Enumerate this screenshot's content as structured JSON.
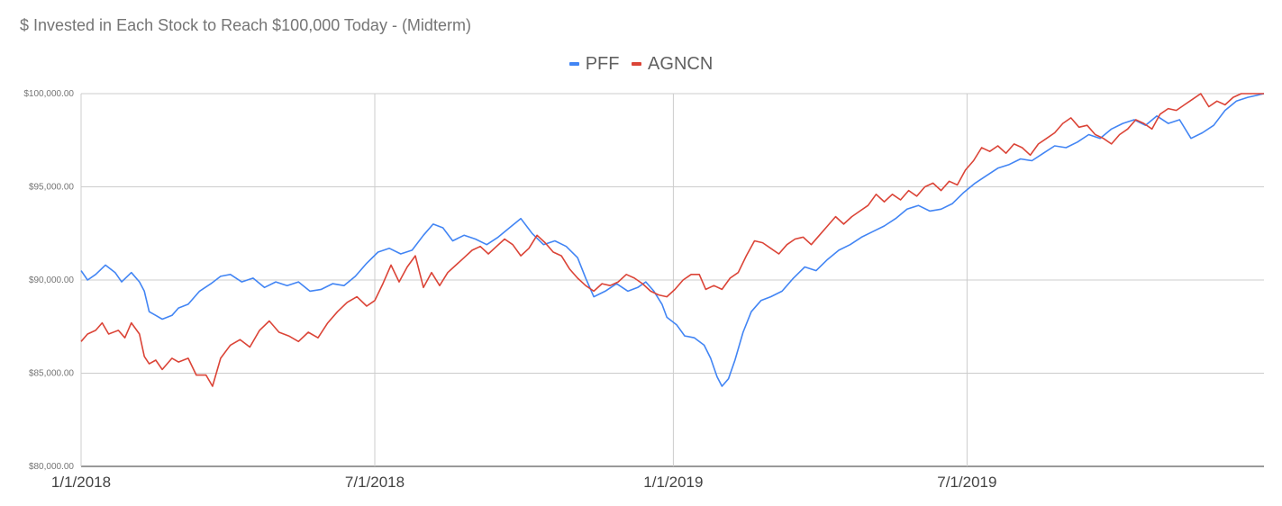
{
  "chart_data": {
    "type": "line",
    "title": "$ Invested in Each Stock to Reach $100,000 Today - (Midterm)",
    "xlabel": "",
    "ylabel": "",
    "ylim": [
      80000,
      100000
    ],
    "xlim": [
      "2018-01-01",
      "2019-12-31"
    ],
    "y_ticks": [
      {
        "value": 100000,
        "label": "$100,000.00"
      },
      {
        "value": 95000,
        "label": "$95,000.00"
      },
      {
        "value": 90000,
        "label": "$90,000.00"
      },
      {
        "value": 85000,
        "label": "$85,000.00"
      },
      {
        "value": 80000,
        "label": "$80,000.00"
      }
    ],
    "x_ticks": [
      {
        "value": "2018-01-01",
        "label": "1/1/2018"
      },
      {
        "value": "2018-07-01",
        "label": "7/1/2018"
      },
      {
        "value": "2019-01-01",
        "label": "1/1/2019"
      },
      {
        "value": "2019-07-01",
        "label": "7/1/2019"
      }
    ],
    "grid": true,
    "legend_position": "top",
    "series": [
      {
        "name": "PFF",
        "color": "#4285f4",
        "points": [
          [
            "2018-01-01",
            90500
          ],
          [
            "2018-01-05",
            90000
          ],
          [
            "2018-01-10",
            90300
          ],
          [
            "2018-01-16",
            90800
          ],
          [
            "2018-01-22",
            90400
          ],
          [
            "2018-01-26",
            89900
          ],
          [
            "2018-02-01",
            90400
          ],
          [
            "2018-02-06",
            89900
          ],
          [
            "2018-02-09",
            89400
          ],
          [
            "2018-02-12",
            88300
          ],
          [
            "2018-02-16",
            88100
          ],
          [
            "2018-02-20",
            87900
          ],
          [
            "2018-02-26",
            88100
          ],
          [
            "2018-03-02",
            88500
          ],
          [
            "2018-03-08",
            88700
          ],
          [
            "2018-03-15",
            89400
          ],
          [
            "2018-03-22",
            89800
          ],
          [
            "2018-03-28",
            90200
          ],
          [
            "2018-04-03",
            90300
          ],
          [
            "2018-04-10",
            89900
          ],
          [
            "2018-04-17",
            90100
          ],
          [
            "2018-04-24",
            89600
          ],
          [
            "2018-05-01",
            89900
          ],
          [
            "2018-05-08",
            89700
          ],
          [
            "2018-05-15",
            89900
          ],
          [
            "2018-05-22",
            89400
          ],
          [
            "2018-05-29",
            89500
          ],
          [
            "2018-06-05",
            89800
          ],
          [
            "2018-06-12",
            89700
          ],
          [
            "2018-06-19",
            90200
          ],
          [
            "2018-06-26",
            90900
          ],
          [
            "2018-07-03",
            91500
          ],
          [
            "2018-07-10",
            91700
          ],
          [
            "2018-07-17",
            91400
          ],
          [
            "2018-07-24",
            91600
          ],
          [
            "2018-07-31",
            92400
          ],
          [
            "2018-08-06",
            93000
          ],
          [
            "2018-08-12",
            92800
          ],
          [
            "2018-08-18",
            92100
          ],
          [
            "2018-08-25",
            92400
          ],
          [
            "2018-09-01",
            92200
          ],
          [
            "2018-09-08",
            91900
          ],
          [
            "2018-09-15",
            92300
          ],
          [
            "2018-09-22",
            92800
          ],
          [
            "2018-09-29",
            93300
          ],
          [
            "2018-10-06",
            92500
          ],
          [
            "2018-10-13",
            91900
          ],
          [
            "2018-10-20",
            92100
          ],
          [
            "2018-10-27",
            91800
          ],
          [
            "2018-11-03",
            91200
          ],
          [
            "2018-11-08",
            90100
          ],
          [
            "2018-11-13",
            89100
          ],
          [
            "2018-11-20",
            89400
          ],
          [
            "2018-11-27",
            89800
          ],
          [
            "2018-12-04",
            89400
          ],
          [
            "2018-12-10",
            89600
          ],
          [
            "2018-12-15",
            89900
          ],
          [
            "2018-12-20",
            89400
          ],
          [
            "2018-12-25",
            88700
          ],
          [
            "2018-12-28",
            88000
          ],
          [
            "2019-01-03",
            87600
          ],
          [
            "2019-01-08",
            87000
          ],
          [
            "2019-01-14",
            86900
          ],
          [
            "2019-01-20",
            86500
          ],
          [
            "2019-01-24",
            85800
          ],
          [
            "2019-01-28",
            84800
          ],
          [
            "2019-01-31",
            84300
          ],
          [
            "2019-02-04",
            84700
          ],
          [
            "2019-02-08",
            85700
          ],
          [
            "2019-02-13",
            87200
          ],
          [
            "2019-02-18",
            88300
          ],
          [
            "2019-02-24",
            88900
          ],
          [
            "2019-03-02",
            89100
          ],
          [
            "2019-03-09",
            89400
          ],
          [
            "2019-03-16",
            90100
          ],
          [
            "2019-03-23",
            90700
          ],
          [
            "2019-03-30",
            90500
          ],
          [
            "2019-04-06",
            91100
          ],
          [
            "2019-04-13",
            91600
          ],
          [
            "2019-04-20",
            91900
          ],
          [
            "2019-04-27",
            92300
          ],
          [
            "2019-05-04",
            92600
          ],
          [
            "2019-05-11",
            92900
          ],
          [
            "2019-05-18",
            93300
          ],
          [
            "2019-05-25",
            93800
          ],
          [
            "2019-06-01",
            94000
          ],
          [
            "2019-06-08",
            93700
          ],
          [
            "2019-06-15",
            93800
          ],
          [
            "2019-06-22",
            94100
          ],
          [
            "2019-06-29",
            94700
          ],
          [
            "2019-07-06",
            95200
          ],
          [
            "2019-07-13",
            95600
          ],
          [
            "2019-07-20",
            96000
          ],
          [
            "2019-07-27",
            96200
          ],
          [
            "2019-08-03",
            96500
          ],
          [
            "2019-08-10",
            96400
          ],
          [
            "2019-08-17",
            96800
          ],
          [
            "2019-08-24",
            97200
          ],
          [
            "2019-08-31",
            97100
          ],
          [
            "2019-09-07",
            97400
          ],
          [
            "2019-09-14",
            97800
          ],
          [
            "2019-09-21",
            97600
          ],
          [
            "2019-09-28",
            98100
          ],
          [
            "2019-10-05",
            98400
          ],
          [
            "2019-10-12",
            98600
          ],
          [
            "2019-10-19",
            98300
          ],
          [
            "2019-10-26",
            98800
          ],
          [
            "2019-11-02",
            98400
          ],
          [
            "2019-11-09",
            98600
          ],
          [
            "2019-11-16",
            97600
          ],
          [
            "2019-11-23",
            97900
          ],
          [
            "2019-11-30",
            98300
          ],
          [
            "2019-12-07",
            99100
          ],
          [
            "2019-12-14",
            99600
          ],
          [
            "2019-12-21",
            99800
          ],
          [
            "2019-12-31",
            100000
          ]
        ]
      },
      {
        "name": "AGNCN",
        "color": "#db4437",
        "points": [
          [
            "2018-01-01",
            86700
          ],
          [
            "2018-01-05",
            87100
          ],
          [
            "2018-01-10",
            87300
          ],
          [
            "2018-01-14",
            87700
          ],
          [
            "2018-01-18",
            87100
          ],
          [
            "2018-01-24",
            87300
          ],
          [
            "2018-01-28",
            86900
          ],
          [
            "2018-02-01",
            87700
          ],
          [
            "2018-02-06",
            87100
          ],
          [
            "2018-02-09",
            85900
          ],
          [
            "2018-02-12",
            85500
          ],
          [
            "2018-02-16",
            85700
          ],
          [
            "2018-02-20",
            85200
          ],
          [
            "2018-02-26",
            85800
          ],
          [
            "2018-03-02",
            85600
          ],
          [
            "2018-03-08",
            85800
          ],
          [
            "2018-03-13",
            84900
          ],
          [
            "2018-03-19",
            84900
          ],
          [
            "2018-03-23",
            84300
          ],
          [
            "2018-03-28",
            85800
          ],
          [
            "2018-04-03",
            86500
          ],
          [
            "2018-04-09",
            86800
          ],
          [
            "2018-04-15",
            86400
          ],
          [
            "2018-04-21",
            87300
          ],
          [
            "2018-04-27",
            87800
          ],
          [
            "2018-05-03",
            87200
          ],
          [
            "2018-05-09",
            87000
          ],
          [
            "2018-05-15",
            86700
          ],
          [
            "2018-05-21",
            87200
          ],
          [
            "2018-05-27",
            86900
          ],
          [
            "2018-06-02",
            87700
          ],
          [
            "2018-06-08",
            88300
          ],
          [
            "2018-06-14",
            88800
          ],
          [
            "2018-06-20",
            89100
          ],
          [
            "2018-06-26",
            88600
          ],
          [
            "2018-07-01",
            88900
          ],
          [
            "2018-07-06",
            89800
          ],
          [
            "2018-07-11",
            90800
          ],
          [
            "2018-07-16",
            89900
          ],
          [
            "2018-07-21",
            90700
          ],
          [
            "2018-07-26",
            91300
          ],
          [
            "2018-07-31",
            89600
          ],
          [
            "2018-08-05",
            90400
          ],
          [
            "2018-08-10",
            89700
          ],
          [
            "2018-08-15",
            90400
          ],
          [
            "2018-08-20",
            90800
          ],
          [
            "2018-08-25",
            91200
          ],
          [
            "2018-08-30",
            91600
          ],
          [
            "2018-09-04",
            91800
          ],
          [
            "2018-09-09",
            91400
          ],
          [
            "2018-09-14",
            91800
          ],
          [
            "2018-09-19",
            92200
          ],
          [
            "2018-09-24",
            91900
          ],
          [
            "2018-09-29",
            91300
          ],
          [
            "2018-10-04",
            91700
          ],
          [
            "2018-10-09",
            92400
          ],
          [
            "2018-10-14",
            92000
          ],
          [
            "2018-10-19",
            91500
          ],
          [
            "2018-10-24",
            91300
          ],
          [
            "2018-10-29",
            90600
          ],
          [
            "2018-11-03",
            90100
          ],
          [
            "2018-11-08",
            89700
          ],
          [
            "2018-11-13",
            89400
          ],
          [
            "2018-11-18",
            89800
          ],
          [
            "2018-11-23",
            89700
          ],
          [
            "2018-11-28",
            89900
          ],
          [
            "2018-12-03",
            90300
          ],
          [
            "2018-12-08",
            90100
          ],
          [
            "2018-12-13",
            89800
          ],
          [
            "2018-12-18",
            89400
          ],
          [
            "2018-12-23",
            89200
          ],
          [
            "2018-12-28",
            89100
          ],
          [
            "2019-01-02",
            89500
          ],
          [
            "2019-01-07",
            90000
          ],
          [
            "2019-01-12",
            90300
          ],
          [
            "2019-01-17",
            90300
          ],
          [
            "2019-01-21",
            89500
          ],
          [
            "2019-01-26",
            89700
          ],
          [
            "2019-01-31",
            89500
          ],
          [
            "2019-02-05",
            90100
          ],
          [
            "2019-02-10",
            90400
          ],
          [
            "2019-02-15",
            91300
          ],
          [
            "2019-02-20",
            92100
          ],
          [
            "2019-02-25",
            92000
          ],
          [
            "2019-03-02",
            91700
          ],
          [
            "2019-03-07",
            91400
          ],
          [
            "2019-03-12",
            91900
          ],
          [
            "2019-03-17",
            92200
          ],
          [
            "2019-03-22",
            92300
          ],
          [
            "2019-03-27",
            91900
          ],
          [
            "2019-04-01",
            92400
          ],
          [
            "2019-04-06",
            92900
          ],
          [
            "2019-04-11",
            93400
          ],
          [
            "2019-04-16",
            93000
          ],
          [
            "2019-04-21",
            93400
          ],
          [
            "2019-04-26",
            93700
          ],
          [
            "2019-05-01",
            94000
          ],
          [
            "2019-05-06",
            94600
          ],
          [
            "2019-05-11",
            94200
          ],
          [
            "2019-05-16",
            94600
          ],
          [
            "2019-05-21",
            94300
          ],
          [
            "2019-05-26",
            94800
          ],
          [
            "2019-05-31",
            94500
          ],
          [
            "2019-06-05",
            95000
          ],
          [
            "2019-06-10",
            95200
          ],
          [
            "2019-06-15",
            94800
          ],
          [
            "2019-06-20",
            95300
          ],
          [
            "2019-06-25",
            95100
          ],
          [
            "2019-06-30",
            95900
          ],
          [
            "2019-07-05",
            96400
          ],
          [
            "2019-07-10",
            97100
          ],
          [
            "2019-07-15",
            96900
          ],
          [
            "2019-07-20",
            97200
          ],
          [
            "2019-07-25",
            96800
          ],
          [
            "2019-07-30",
            97300
          ],
          [
            "2019-08-04",
            97100
          ],
          [
            "2019-08-09",
            96700
          ],
          [
            "2019-08-14",
            97300
          ],
          [
            "2019-08-19",
            97600
          ],
          [
            "2019-08-24",
            97900
          ],
          [
            "2019-08-29",
            98400
          ],
          [
            "2019-09-03",
            98700
          ],
          [
            "2019-09-08",
            98200
          ],
          [
            "2019-09-13",
            98300
          ],
          [
            "2019-09-18",
            97800
          ],
          [
            "2019-09-23",
            97600
          ],
          [
            "2019-09-28",
            97300
          ],
          [
            "2019-10-03",
            97800
          ],
          [
            "2019-10-08",
            98100
          ],
          [
            "2019-10-13",
            98600
          ],
          [
            "2019-10-18",
            98400
          ],
          [
            "2019-10-23",
            98100
          ],
          [
            "2019-10-28",
            98900
          ],
          [
            "2019-11-02",
            99200
          ],
          [
            "2019-11-07",
            99100
          ],
          [
            "2019-11-12",
            99400
          ],
          [
            "2019-11-17",
            99700
          ],
          [
            "2019-11-22",
            100000
          ],
          [
            "2019-11-27",
            99300
          ],
          [
            "2019-12-02",
            99600
          ],
          [
            "2019-12-07",
            99400
          ],
          [
            "2019-12-12",
            99800
          ],
          [
            "2019-12-17",
            100000
          ],
          [
            "2019-12-31",
            100000
          ]
        ]
      }
    ]
  }
}
